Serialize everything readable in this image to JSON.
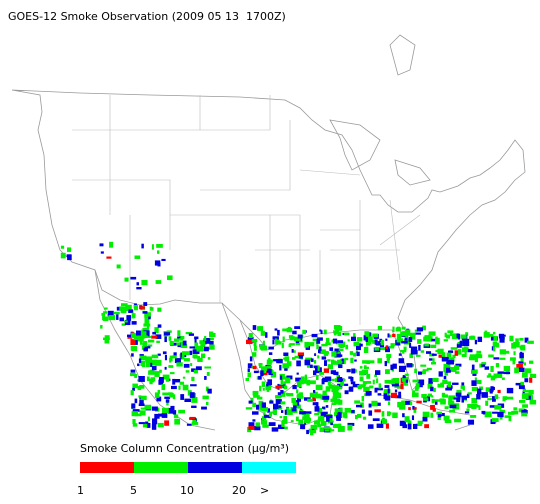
{
  "title": "GOES-12 Smoke Observation (2009 05 13  1700Z)",
  "legend": {
    "title": "Smoke Column Concentration (μg/m³)",
    "colors": [
      "#ff0000",
      "#00ee00",
      "#0000e0",
      "#00ffff"
    ],
    "ticks": [
      "1",
      "5",
      "10",
      "20",
      ">"
    ]
  }
}
